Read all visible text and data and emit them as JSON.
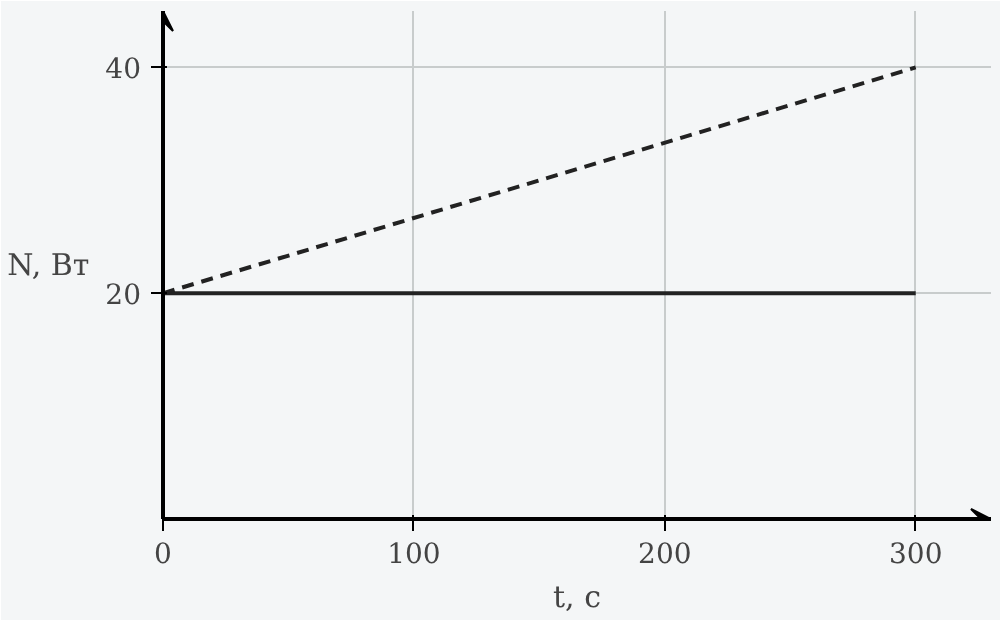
{
  "chart_data": {
    "type": "line",
    "xlabel": "t, с",
    "ylabel": "N, Вт",
    "x": [
      0,
      300
    ],
    "series": [
      {
        "color": "#222222",
        "values": [
          20,
          20
        ],
        "line_style": "solid"
      },
      {
        "color": "#222222",
        "values": [
          20,
          40
        ],
        "line_style": "dashed"
      }
    ],
    "xlim": [
      0,
      330
    ],
    "ylim": [
      0,
      45
    ],
    "xticks": [
      0,
      100,
      200,
      300
    ],
    "yticks": [
      20,
      40
    ],
    "grid": true
  }
}
